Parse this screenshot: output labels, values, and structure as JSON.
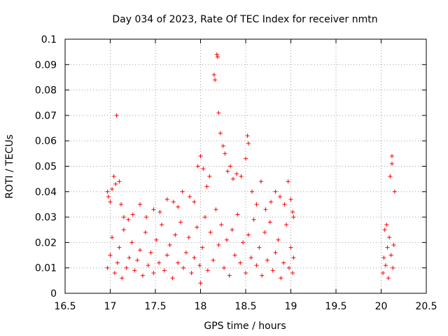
{
  "chart_data": {
    "type": "scatter",
    "title": "Day 034 of 2023, Rate Of TEC Index for receiver nmtn",
    "xlabel": "GPS time / hours",
    "ylabel": "ROTI / TECUs",
    "xlim": [
      16.5,
      20.5
    ],
    "ylim": [
      0,
      0.1
    ],
    "x_ticks": [
      "16.5",
      "17",
      "17.5",
      "18",
      "18.5",
      "19",
      "19.5",
      "20",
      "20.5"
    ],
    "y_ticks": [
      "0",
      "0.01",
      "0.02",
      "0.03",
      "0.04",
      "0.05",
      "0.06",
      "0.07",
      "0.08",
      "0.09",
      "0.1"
    ],
    "grid": true,
    "marker": "+",
    "colors": {
      "series": "#ff0000",
      "grid": "#a0a0a0",
      "axes": "#000000"
    },
    "series": [
      {
        "points": [
          [
            16.97,
            0.04
          ],
          [
            16.98,
            0.038
          ],
          [
            17.0,
            0.036
          ],
          [
            17.02,
            0.041
          ],
          [
            17.04,
            0.046
          ],
          [
            17.06,
            0.043
          ],
          [
            17.07,
            0.07
          ],
          [
            17.1,
            0.044
          ],
          [
            17.12,
            0.035
          ],
          [
            17.15,
            0.03
          ],
          [
            17.2,
            0.029
          ],
          [
            17.25,
            0.031
          ],
          [
            17.33,
            0.035
          ],
          [
            17.4,
            0.03
          ],
          [
            17.48,
            0.033
          ],
          [
            17.55,
            0.032
          ],
          [
            17.63,
            0.037
          ],
          [
            17.7,
            0.036
          ],
          [
            17.75,
            0.034
          ],
          [
            17.8,
            0.04
          ],
          [
            17.88,
            0.038
          ],
          [
            17.93,
            0.036
          ],
          [
            17.97,
            0.05
          ],
          [
            18.0,
            0.054
          ],
          [
            18.03,
            0.049
          ],
          [
            18.07,
            0.042
          ],
          [
            18.1,
            0.046
          ],
          [
            18.15,
            0.086
          ],
          [
            18.16,
            0.084
          ],
          [
            18.18,
            0.094
          ],
          [
            18.19,
            0.093
          ],
          [
            18.2,
            0.071
          ],
          [
            18.22,
            0.063
          ],
          [
            18.25,
            0.058
          ],
          [
            18.27,
            0.055
          ],
          [
            18.3,
            0.048
          ],
          [
            18.33,
            0.05
          ],
          [
            18.36,
            0.045
          ],
          [
            18.4,
            0.047
          ],
          [
            18.45,
            0.046
          ],
          [
            18.5,
            0.053
          ],
          [
            18.52,
            0.062
          ],
          [
            18.53,
            0.059
          ],
          [
            18.57,
            0.04
          ],
          [
            18.62,
            0.035
          ],
          [
            18.67,
            0.044
          ],
          [
            18.72,
            0.033
          ],
          [
            18.78,
            0.036
          ],
          [
            18.83,
            0.04
          ],
          [
            18.88,
            0.038
          ],
          [
            18.93,
            0.035
          ],
          [
            18.97,
            0.044
          ],
          [
            19.0,
            0.037
          ],
          [
            19.02,
            0.032
          ],
          [
            16.97,
            0.01
          ],
          [
            17.0,
            0.015
          ],
          [
            17.02,
            0.022
          ],
          [
            17.05,
            0.008
          ],
          [
            17.08,
            0.012
          ],
          [
            17.1,
            0.018
          ],
          [
            17.13,
            0.006
          ],
          [
            17.15,
            0.025
          ],
          [
            17.18,
            0.01
          ],
          [
            17.21,
            0.014
          ],
          [
            17.24,
            0.02
          ],
          [
            17.27,
            0.009
          ],
          [
            17.3,
            0.013
          ],
          [
            17.33,
            0.017
          ],
          [
            17.36,
            0.007
          ],
          [
            17.39,
            0.024
          ],
          [
            17.42,
            0.011
          ],
          [
            17.45,
            0.016
          ],
          [
            17.48,
            0.008
          ],
          [
            17.51,
            0.021
          ],
          [
            17.54,
            0.012
          ],
          [
            17.57,
            0.027
          ],
          [
            17.6,
            0.009
          ],
          [
            17.63,
            0.015
          ],
          [
            17.66,
            0.019
          ],
          [
            17.69,
            0.006
          ],
          [
            17.72,
            0.023
          ],
          [
            17.75,
            0.012
          ],
          [
            17.78,
            0.028
          ],
          [
            17.81,
            0.01
          ],
          [
            17.84,
            0.016
          ],
          [
            17.87,
            0.022
          ],
          [
            17.9,
            0.008
          ],
          [
            17.93,
            0.014
          ],
          [
            17.96,
            0.026
          ],
          [
            17.99,
            0.011
          ],
          [
            18.0,
            0.004
          ],
          [
            18.02,
            0.018
          ],
          [
            18.05,
            0.03
          ],
          [
            18.08,
            0.009
          ],
          [
            18.11,
            0.024
          ],
          [
            18.14,
            0.013
          ],
          [
            18.17,
            0.033
          ],
          [
            18.2,
            0.019
          ],
          [
            18.23,
            0.027
          ],
          [
            18.26,
            0.01
          ],
          [
            18.29,
            0.021
          ],
          [
            18.32,
            0.007
          ],
          [
            18.35,
            0.025
          ],
          [
            18.38,
            0.015
          ],
          [
            18.41,
            0.031
          ],
          [
            18.44,
            0.012
          ],
          [
            18.47,
            0.02
          ],
          [
            18.5,
            0.008
          ],
          [
            18.53,
            0.023
          ],
          [
            18.56,
            0.014
          ],
          [
            18.59,
            0.029
          ],
          [
            18.62,
            0.011
          ],
          [
            18.65,
            0.018
          ],
          [
            18.68,
            0.007
          ],
          [
            18.71,
            0.024
          ],
          [
            18.74,
            0.013
          ],
          [
            18.77,
            0.028
          ],
          [
            18.8,
            0.009
          ],
          [
            18.83,
            0.016
          ],
          [
            18.86,
            0.021
          ],
          [
            18.89,
            0.006
          ],
          [
            18.92,
            0.012
          ],
          [
            18.95,
            0.027
          ],
          [
            18.98,
            0.01
          ],
          [
            19.0,
            0.018
          ],
          [
            19.02,
            0.008
          ],
          [
            19.03,
            0.03
          ],
          [
            19.03,
            0.014
          ],
          [
            20.02,
            0.008
          ],
          [
            20.03,
            0.014
          ],
          [
            20.04,
            0.025
          ],
          [
            20.05,
            0.011
          ],
          [
            20.06,
            0.027
          ],
          [
            20.07,
            0.018
          ],
          [
            20.08,
            0.006
          ],
          [
            20.09,
            0.022
          ],
          [
            20.1,
            0.046
          ],
          [
            20.11,
            0.015
          ],
          [
            20.12,
            0.054
          ],
          [
            20.12,
            0.051
          ],
          [
            20.13,
            0.01
          ],
          [
            20.14,
            0.019
          ],
          [
            20.15,
            0.04
          ]
        ]
      }
    ]
  }
}
